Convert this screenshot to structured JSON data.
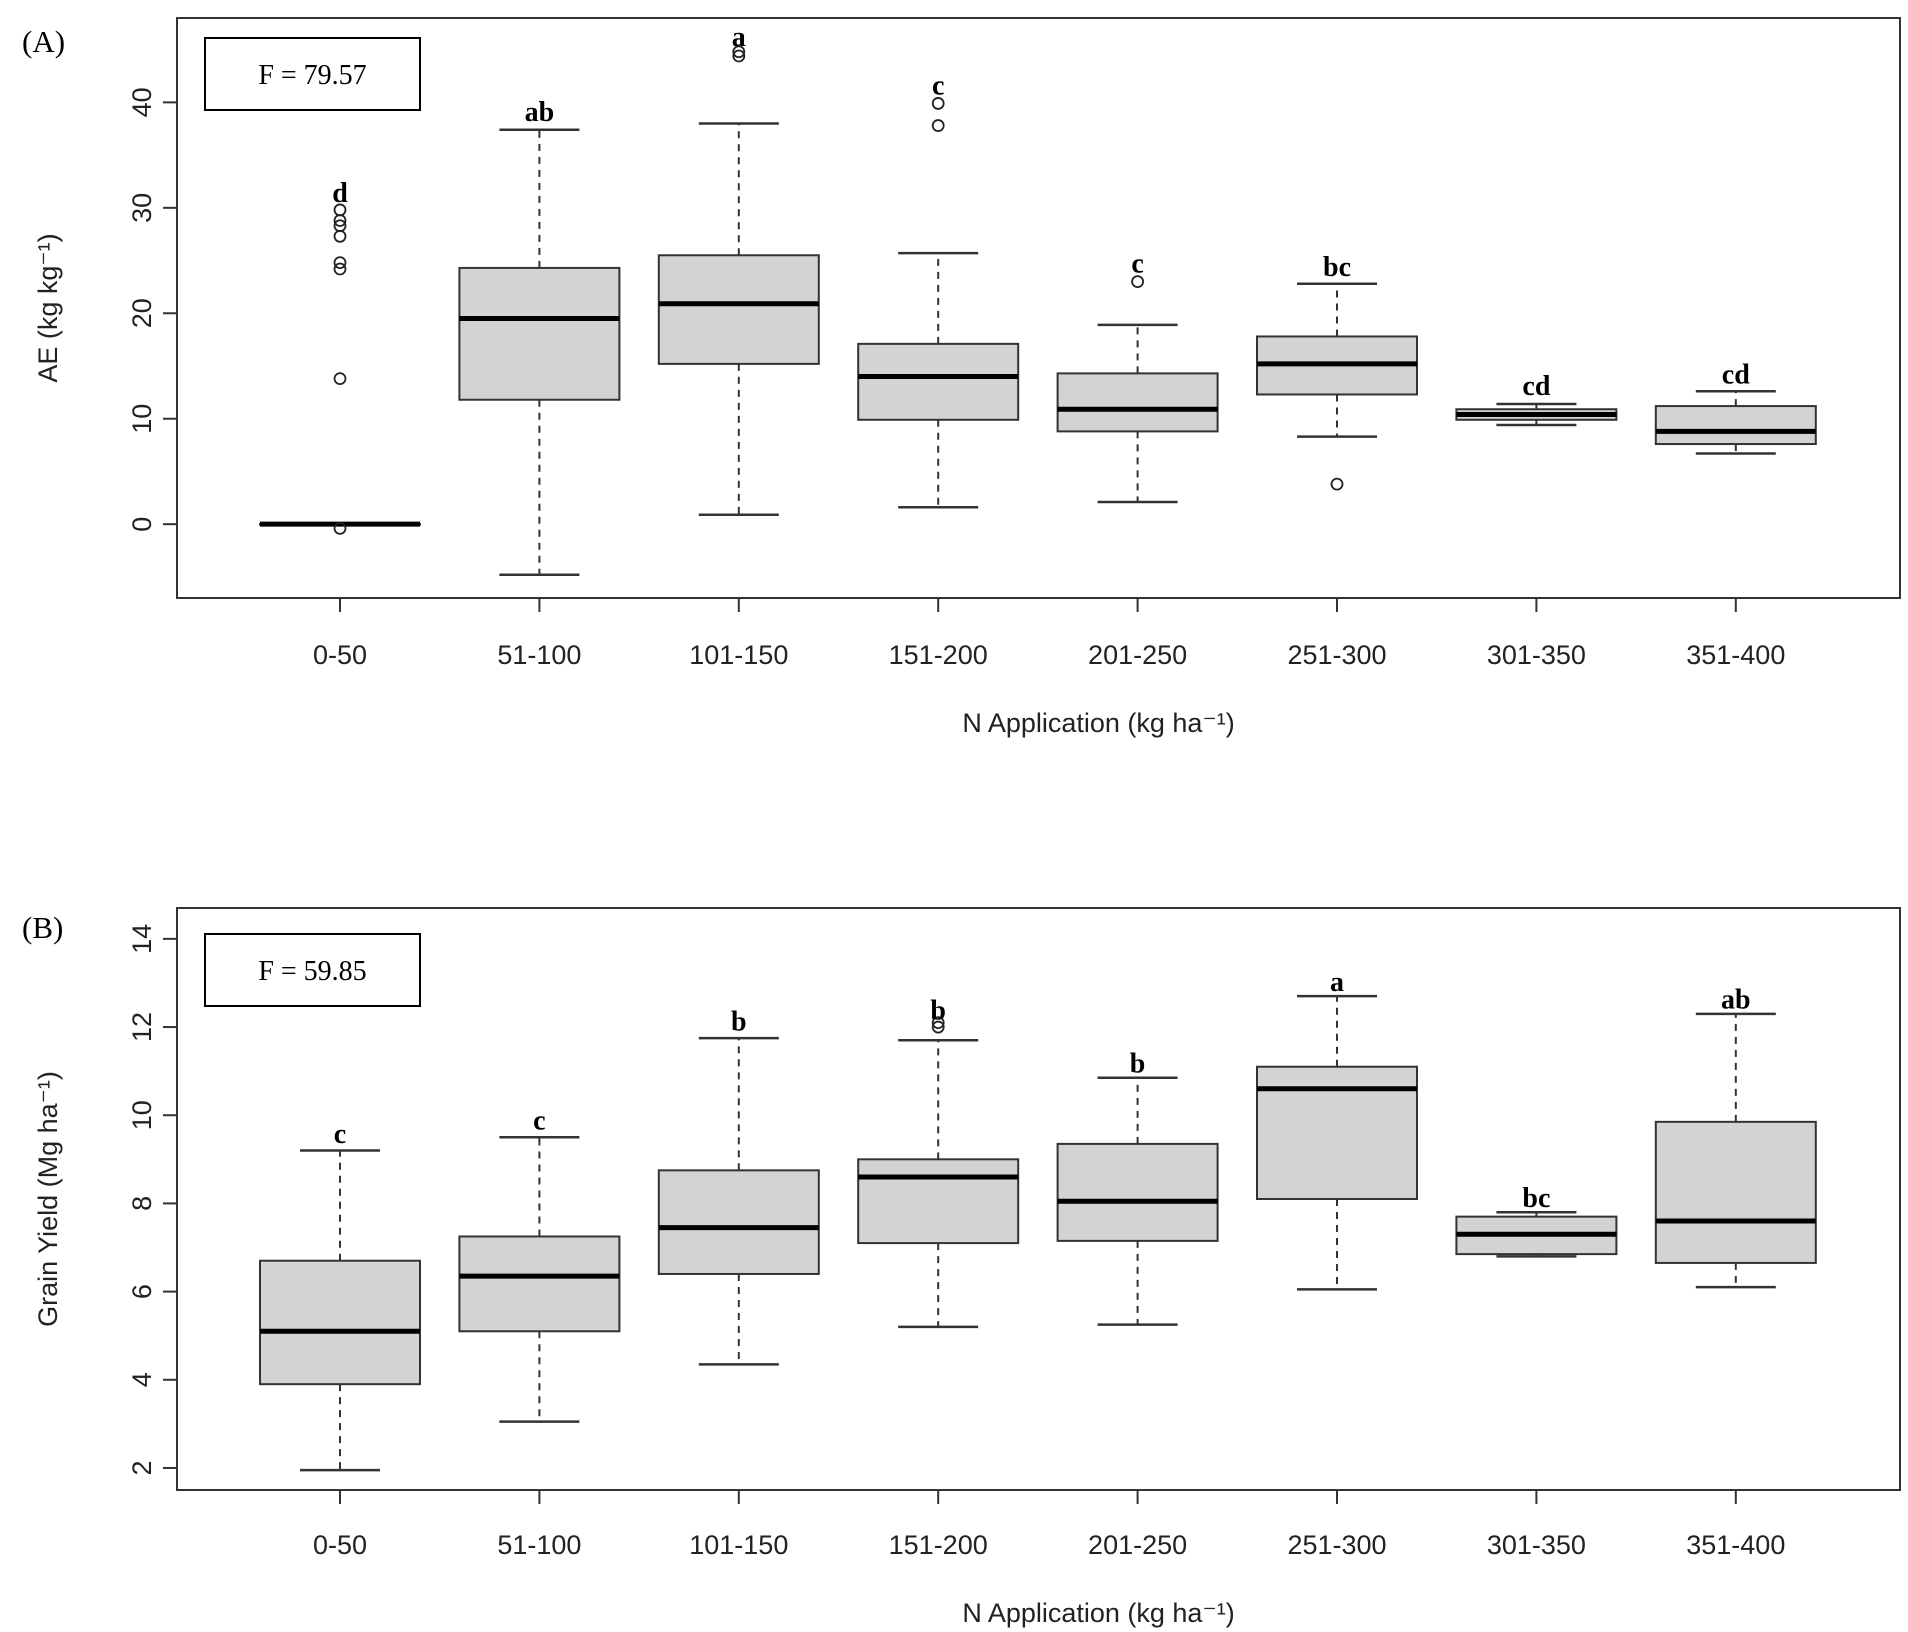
{
  "chart_data": [
    {
      "type": "boxplot",
      "panel_label": "(A)",
      "f_stat": "F = 79.57",
      "xlabel": "N Application (kg ha⁻¹)",
      "ylabel": "AE (kg kg⁻¹)",
      "ylim": [
        -7,
        48
      ],
      "yticks": [
        0,
        10,
        20,
        30,
        40
      ],
      "categories": [
        "0-50",
        "51-100",
        "101-150",
        "151-200",
        "201-250",
        "251-300",
        "301-350",
        "351-400"
      ],
      "boxes": [
        {
          "whisker_low": 0,
          "q1": 0,
          "median": 0,
          "q3": 0,
          "whisker_high": 0,
          "outliers": [
            -0.4,
            13.8,
            24.2,
            24.8,
            27.3,
            28.3,
            28.8,
            29.8
          ],
          "letter": "d",
          "letter_y": 31.5
        },
        {
          "whisker_low": -4.8,
          "q1": 11.8,
          "median": 19.5,
          "q3": 24.3,
          "whisker_high": 37.4,
          "outliers": [],
          "letter": "ab",
          "letter_y": 39.2
        },
        {
          "whisker_low": 0.9,
          "q1": 15.2,
          "median": 20.9,
          "q3": 25.5,
          "whisker_high": 38.0,
          "outliers": [
            44.4,
            44.8
          ],
          "letter": "a",
          "letter_y": 46.3
        },
        {
          "whisker_low": 1.6,
          "q1": 9.9,
          "median": 14.0,
          "q3": 17.1,
          "whisker_high": 25.7,
          "outliers": [
            37.8,
            39.9
          ],
          "letter": "c",
          "letter_y": 41.7
        },
        {
          "whisker_low": 2.1,
          "q1": 8.8,
          "median": 10.9,
          "q3": 14.3,
          "whisker_high": 18.9,
          "outliers": [
            23.0
          ],
          "letter": "c",
          "letter_y": 24.8
        },
        {
          "whisker_low": 8.3,
          "q1": 12.3,
          "median": 15.2,
          "q3": 17.8,
          "whisker_high": 22.8,
          "outliers": [
            3.8
          ],
          "letter": "bc",
          "letter_y": 24.5
        },
        {
          "whisker_low": 9.4,
          "q1": 9.9,
          "median": 10.4,
          "q3": 10.9,
          "whisker_high": 11.4,
          "outliers": [],
          "letter": "cd",
          "letter_y": 13.2
        },
        {
          "whisker_low": 6.7,
          "q1": 7.6,
          "median": 8.8,
          "q3": 11.2,
          "whisker_high": 12.6,
          "outliers": [],
          "letter": "cd",
          "letter_y": 14.3
        }
      ]
    },
    {
      "type": "boxplot",
      "panel_label": "(B)",
      "f_stat": "F = 59.85",
      "xlabel": "N Application (kg ha⁻¹)",
      "ylabel": "Grain Yield (Mg ha⁻¹)",
      "ylim": [
        1.5,
        14.7
      ],
      "yticks": [
        2,
        4,
        6,
        8,
        10,
        12,
        14
      ],
      "categories": [
        "0-50",
        "51-100",
        "101-150",
        "151-200",
        "201-250",
        "251-300",
        "301-350",
        "351-400"
      ],
      "boxes": [
        {
          "whisker_low": 1.95,
          "q1": 3.9,
          "median": 5.1,
          "q3": 6.7,
          "whisker_high": 9.2,
          "outliers": [],
          "letter": "c",
          "letter_y": 9.6
        },
        {
          "whisker_low": 3.05,
          "q1": 5.1,
          "median": 6.35,
          "q3": 7.25,
          "whisker_high": 9.5,
          "outliers": [],
          "letter": "c",
          "letter_y": 9.9
        },
        {
          "whisker_low": 4.35,
          "q1": 6.4,
          "median": 7.45,
          "q3": 8.75,
          "whisker_high": 11.75,
          "outliers": [],
          "letter": "b",
          "letter_y": 12.15
        },
        {
          "whisker_low": 5.2,
          "q1": 7.1,
          "median": 8.6,
          "q3": 9.0,
          "whisker_high": 11.7,
          "outliers": [
            12.0,
            12.1
          ],
          "letter": "b",
          "letter_y": 12.4
        },
        {
          "whisker_low": 5.25,
          "q1": 7.15,
          "median": 8.05,
          "q3": 9.35,
          "whisker_high": 10.85,
          "outliers": [],
          "letter": "b",
          "letter_y": 11.2
        },
        {
          "whisker_low": 6.05,
          "q1": 8.1,
          "median": 10.6,
          "q3": 11.1,
          "whisker_high": 12.7,
          "outliers": [],
          "letter": "a",
          "letter_y": 13.05
        },
        {
          "whisker_low": 6.8,
          "q1": 6.85,
          "median": 7.3,
          "q3": 7.7,
          "whisker_high": 7.8,
          "outliers": [],
          "letter": "bc",
          "letter_y": 8.15
        },
        {
          "whisker_low": 6.1,
          "q1": 6.65,
          "median": 7.6,
          "q3": 9.85,
          "whisker_high": 12.3,
          "outliers": [],
          "letter": "ab",
          "letter_y": 12.65
        }
      ]
    }
  ]
}
